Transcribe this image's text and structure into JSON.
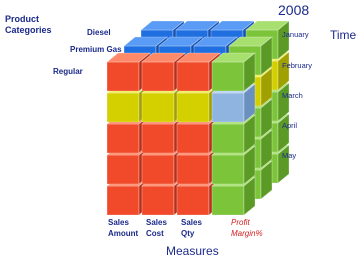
{
  "header": {
    "title": "Product Categories",
    "year": "2008",
    "time": "Time"
  },
  "products": [
    "Diesel",
    "Premium Gas",
    "Regular"
  ],
  "months": [
    "January",
    "February",
    "March",
    "April",
    "May"
  ],
  "measures": [
    "Sales Amount",
    "Sales Cost",
    "Sales Qty",
    "Profit Margin%"
  ],
  "footer": "Measures"
}
